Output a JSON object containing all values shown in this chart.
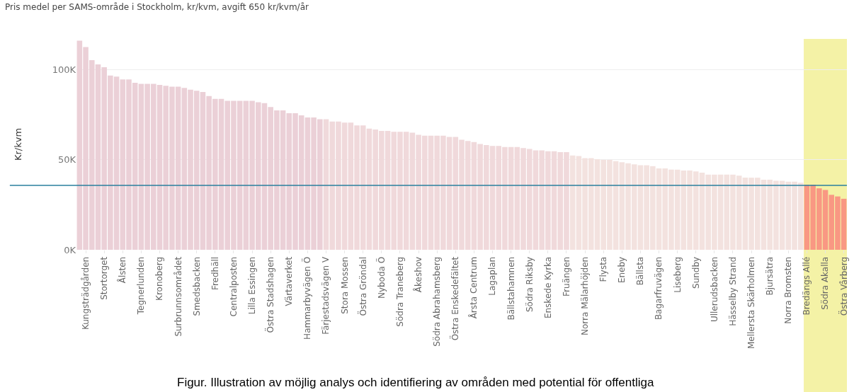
{
  "chart_data": {
    "type": "bar",
    "title": "Pris medel per SAMS-område i Stockholm, kr/kvm, avgift 650 kr/kvm/år",
    "ylabel": "Kr/kvm",
    "categories": [
      null,
      "Kungsträdgården",
      null,
      null,
      "Stortorget",
      null,
      null,
      "Ålsten",
      null,
      null,
      "Tegnerlunden",
      null,
      null,
      "Kronoberg",
      null,
      null,
      "Surbrunnsområdet",
      null,
      null,
      "Smedsbacken",
      null,
      null,
      "Fredhäll",
      null,
      null,
      "Centralposten",
      null,
      null,
      "Lilla Essingen",
      null,
      null,
      "Östra Stadshagen",
      null,
      null,
      "Värtaverket",
      null,
      null,
      "Hammarbyvägen Ö",
      null,
      null,
      "Färjestadsvägen V",
      null,
      null,
      "Stora Mossen",
      null,
      null,
      "Östra Gröndal",
      null,
      null,
      "Nyboda Ö",
      null,
      null,
      "Södra Traneberg",
      null,
      null,
      "Åkeshov",
      null,
      null,
      "Södra Abrahamsberg",
      null,
      null,
      "Östra Enskedefältet",
      null,
      null,
      "Årsta Centrum",
      null,
      null,
      "Lagaplan",
      null,
      null,
      "Bällstahamnen",
      null,
      null,
      "Södra Riksby",
      null,
      null,
      "Enskede Kyrka",
      null,
      null,
      "Fruängen",
      null,
      null,
      "Norra Mälarhöjden",
      null,
      null,
      "Flysta",
      null,
      null,
      "Eneby",
      null,
      null,
      "Bällsta",
      null,
      null,
      "Bagarfruvägen",
      null,
      null,
      "Liseberg",
      null,
      null,
      "Sundby",
      null,
      null,
      "Ullerudsbacken",
      null,
      null,
      "Hässelby Strand",
      null,
      null,
      "Mellersta Skärholmen",
      null,
      null,
      "Bjursätra",
      null,
      null,
      "Norra Bromsten",
      null,
      null,
      "Bredängs Allé",
      null,
      null,
      "Södra Akalla",
      null,
      null,
      "Östra Vårberg"
    ],
    "values": [
      116000,
      112500,
      105200,
      102900,
      101300,
      96700,
      96100,
      94500,
      94500,
      92700,
      92100,
      92100,
      92100,
      91500,
      91000,
      90500,
      90500,
      89800,
      88800,
      88200,
      87600,
      85300,
      83700,
      83700,
      82600,
      82600,
      82600,
      82600,
      82600,
      81900,
      81400,
      79200,
      77300,
      77300,
      75800,
      75800,
      74600,
      73400,
      73400,
      72400,
      72400,
      71200,
      71200,
      70600,
      70600,
      69000,
      69000,
      67200,
      66700,
      66000,
      66000,
      65500,
      65500,
      65500,
      65000,
      63800,
      63300,
      63300,
      63300,
      63300,
      62600,
      62600,
      61100,
      60400,
      59800,
      58700,
      58100,
      57600,
      57600,
      57000,
      57000,
      57000,
      56400,
      55900,
      55200,
      55200,
      54700,
      54700,
      54200,
      54200,
      52300,
      52000,
      50800,
      50800,
      50300,
      49900,
      49900,
      49200,
      48600,
      48000,
      47400,
      46900,
      46900,
      46400,
      45200,
      45200,
      44500,
      44500,
      44000,
      44000,
      43500,
      42800,
      41700,
      41700,
      41700,
      41700,
      41700,
      41100,
      40000,
      40000,
      40000,
      38900,
      38900,
      38300,
      38300,
      37800,
      37800,
      37200,
      36100,
      36100,
      34100,
      33200,
      30500,
      29600,
      28300
    ],
    "colors": [
      "#ebd0d7",
      "#ebd0d7",
      "#ebd0d7",
      "#ebd0d7",
      "#ebd0d7",
      "#ebd0d7",
      "#ebd0d7",
      "#ebd0d7",
      "#ebd0d7",
      "#ebd0d7",
      "#ebd0d7",
      "#ebd0d7",
      "#ebd0d7",
      "#ebd0d7",
      "#ebd0d7",
      "#ebd0d7",
      "#ebd0d7",
      "#ebd0d7",
      "#ebd0d7",
      "#ebd0d7",
      "#ebd0d7",
      "#ebd0d7",
      "#ebd0d7",
      "#ebd0d7",
      "#ebd0d7",
      "#ebd0d7",
      "#ebd0d7",
      "#ebd0d7",
      "#ebd0d7",
      "#ebd0d7",
      "#ebd0d7",
      "#ebd0d7",
      "#ebd0d7",
      "#ebd0d7",
      "#ebd0d7",
      "#ebd0d7",
      "#ebd0d7",
      "#ebd0d7",
      "#ebd0d7",
      "#ebd0d7",
      "#f0d9db",
      "#f0d9db",
      "#f0d9db",
      "#f0d9db",
      "#f0d9db",
      "#f0d9db",
      "#f0d9db",
      "#f0d9db",
      "#f0d9db",
      "#f0d9db",
      "#f0d9db",
      "#f0d9db",
      "#f0d9db",
      "#f0d9db",
      "#f0d9db",
      "#f0d9db",
      "#f0d9db",
      "#f0d9db",
      "#f0d9db",
      "#f0d9db",
      "#f0d9db",
      "#f0d9db",
      "#f0d9db",
      "#f0d9db",
      "#f0d9db",
      "#f0d9db",
      "#f0d9db",
      "#f0d9db",
      "#f0d9db",
      "#f0d9db",
      "#f0d9db",
      "#f0d9db",
      "#f0d9db",
      "#f0d9db",
      "#f0d9db",
      "#f0d9db",
      "#f0d9db",
      "#f0d9db",
      "#f0d9db",
      "#f0d9db",
      "#f3e2df",
      "#f3e2df",
      "#f3e2df",
      "#f3e2df",
      "#f3e2df",
      "#f3e2df",
      "#f3e2df",
      "#f3e2df",
      "#f3e2df",
      "#f3e2df",
      "#f3e2df",
      "#f3e2df",
      "#f3e2df",
      "#f3e2df",
      "#f3e2df",
      "#f3e2df",
      "#f3e2df",
      "#f3e2df",
      "#f3e2df",
      "#f3e2df",
      "#f3e2df",
      "#f3e2df",
      "#f3e2df",
      "#f3e2df",
      "#f3e2df",
      "#f3e2df",
      "#f3e2df",
      "#f3e2df",
      "#f3e2df",
      "#f3e2df",
      "#f3e2df",
      "#f3e2df",
      "#f3e2df",
      "#f3e2df",
      "#f3e2df",
      "#f3e2df",
      "#f3e2df",
      "#f3e2df",
      "#f99883",
      "#f99883",
      "#f99883",
      "#f99883",
      "#f99883",
      "#f99883",
      "#f99883"
    ],
    "ylim": [
      0,
      117000
    ],
    "yticks": [
      {
        "value": 0,
        "label": "0K"
      },
      {
        "value": 50000,
        "label": "50K"
      },
      {
        "value": 100000,
        "label": "100K"
      }
    ],
    "grid": "y",
    "ref_lines": [
      {
        "axis": "y",
        "value": 35700,
        "color": "#2a7f9e"
      }
    ],
    "bands": [
      {
        "axis": "x",
        "from": "Bredängs Allé",
        "to": "Östra Vårberg",
        "color": "#f4f2a6"
      }
    ],
    "annotations": [
      "Figur. Illustration av möjlig analys och identifiering av områden med potential för offentliga"
    ]
  }
}
